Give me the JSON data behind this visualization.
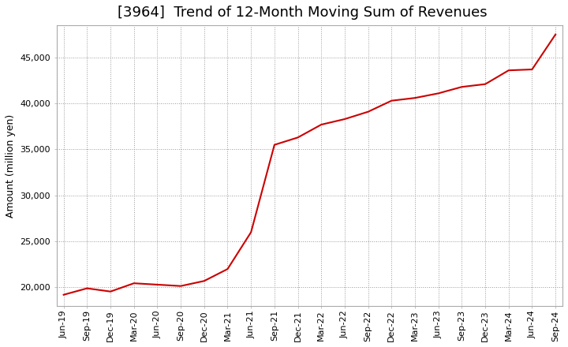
{
  "title": "[3964]  Trend of 12-Month Moving Sum of Revenues",
  "ylabel": "Amount (million yen)",
  "line_color": "#cc0000",
  "background_color": "#ffffff",
  "plot_bg_color": "#ffffff",
  "grid_color": "#999999",
  "xlabels": [
    "Jun-19",
    "Sep-19",
    "Dec-19",
    "Mar-20",
    "Jun-20",
    "Sep-20",
    "Dec-20",
    "Mar-21",
    "Jun-21",
    "Sep-21",
    "Dec-21",
    "Mar-22",
    "Jun-22",
    "Sep-22",
    "Dec-22",
    "Mar-23",
    "Jun-23",
    "Sep-23",
    "Dec-23",
    "Mar-24",
    "Jun-24",
    "Sep-24"
  ],
  "x_values": [
    0,
    1,
    2,
    3,
    4,
    5,
    6,
    7,
    8,
    9,
    10,
    11,
    12,
    13,
    14,
    15,
    16,
    17,
    18,
    19,
    20,
    21
  ],
  "y_values": [
    19200,
    19900,
    19550,
    20450,
    20300,
    20150,
    20700,
    22000,
    26000,
    35500,
    36300,
    37700,
    38300,
    39100,
    40300,
    40600,
    41100,
    41800,
    42100,
    43600,
    43700,
    47500
  ],
  "ylim": [
    18000,
    48500
  ],
  "yticks": [
    20000,
    25000,
    30000,
    35000,
    40000,
    45000
  ],
  "title_fontsize": 13,
  "axis_fontsize": 9,
  "tick_fontsize": 8
}
